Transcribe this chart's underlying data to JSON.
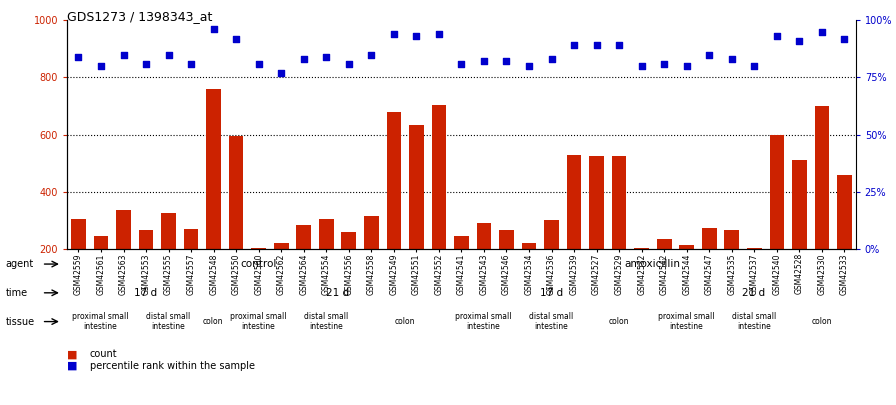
{
  "title": "GDS1273 / 1398343_at",
  "samples": [
    "GSM42559",
    "GSM42561",
    "GSM42563",
    "GSM42553",
    "GSM42555",
    "GSM42557",
    "GSM42548",
    "GSM42550",
    "GSM42560",
    "GSM42562",
    "GSM42564",
    "GSM42554",
    "GSM42556",
    "GSM42558",
    "GSM42549",
    "GSM42551",
    "GSM42552",
    "GSM42541",
    "GSM42543",
    "GSM42546",
    "GSM42534",
    "GSM42536",
    "GSM42539",
    "GSM42527",
    "GSM42529",
    "GSM42532",
    "GSM42542",
    "GSM42544",
    "GSM42547",
    "GSM42535",
    "GSM42537",
    "GSM42540",
    "GSM42528",
    "GSM42530",
    "GSM42533"
  ],
  "counts": [
    305,
    245,
    335,
    265,
    325,
    270,
    760,
    595,
    205,
    220,
    285,
    305,
    260,
    315,
    680,
    635,
    705,
    245,
    290,
    265,
    220,
    300,
    530,
    525,
    525,
    205,
    235,
    215,
    275,
    265,
    205,
    600,
    510,
    700,
    460
  ],
  "percentiles": [
    84,
    80,
    85,
    81,
    85,
    81,
    96,
    92,
    81,
    77,
    83,
    84,
    81,
    85,
    94,
    93,
    94,
    81,
    82,
    82,
    80,
    83,
    89,
    89,
    89,
    80,
    81,
    80,
    85,
    83,
    80,
    93,
    91,
    95,
    92
  ],
  "ylim_left": [
    200,
    1000
  ],
  "yticks_left": [
    200,
    400,
    600,
    800,
    1000
  ],
  "ylim_right": [
    0,
    100
  ],
  "yticks_right": [
    0,
    25,
    50,
    75,
    100
  ],
  "bar_color": "#cc2200",
  "dot_color": "#0000cc",
  "agent_control_color": "#aaffaa",
  "agent_amox_color": "#55cc55",
  "time_color": "#9999dd",
  "tissue_proximal_color": "#ffbbbb",
  "tissue_distal_color": "#ffcccc",
  "tissue_colon_color": "#dd8888",
  "background_color": "#ffffff",
  "agent_groups": [
    {
      "label": "control",
      "start": 0,
      "end": 17
    },
    {
      "label": "amoxicillin",
      "start": 17,
      "end": 35
    }
  ],
  "time_groups": [
    {
      "label": "17 d",
      "start": 0,
      "end": 7
    },
    {
      "label": "21 d",
      "start": 7,
      "end": 17
    },
    {
      "label": "17 d",
      "start": 17,
      "end": 26
    },
    {
      "label": "21 d",
      "start": 26,
      "end": 35
    }
  ],
  "tissue_groups": [
    {
      "label": "proximal small\nintestine",
      "start": 0,
      "end": 3,
      "type": "proximal"
    },
    {
      "label": "distal small\nintestine",
      "start": 3,
      "end": 6,
      "type": "distal"
    },
    {
      "label": "colon",
      "start": 6,
      "end": 7,
      "type": "colon"
    },
    {
      "label": "proximal small\nintestine",
      "start": 7,
      "end": 10,
      "type": "proximal"
    },
    {
      "label": "distal small\nintestine",
      "start": 10,
      "end": 13,
      "type": "distal"
    },
    {
      "label": "colon",
      "start": 13,
      "end": 17,
      "type": "colon"
    },
    {
      "label": "proximal small\nintestine",
      "start": 17,
      "end": 20,
      "type": "proximal"
    },
    {
      "label": "distal small\nintestine",
      "start": 20,
      "end": 23,
      "type": "distal"
    },
    {
      "label": "colon",
      "start": 23,
      "end": 26,
      "type": "colon"
    },
    {
      "label": "proximal small\nintestine",
      "start": 26,
      "end": 29,
      "type": "proximal"
    },
    {
      "label": "distal small\nintestine",
      "start": 29,
      "end": 32,
      "type": "distal"
    },
    {
      "label": "colon",
      "start": 32,
      "end": 35,
      "type": "colon"
    }
  ]
}
